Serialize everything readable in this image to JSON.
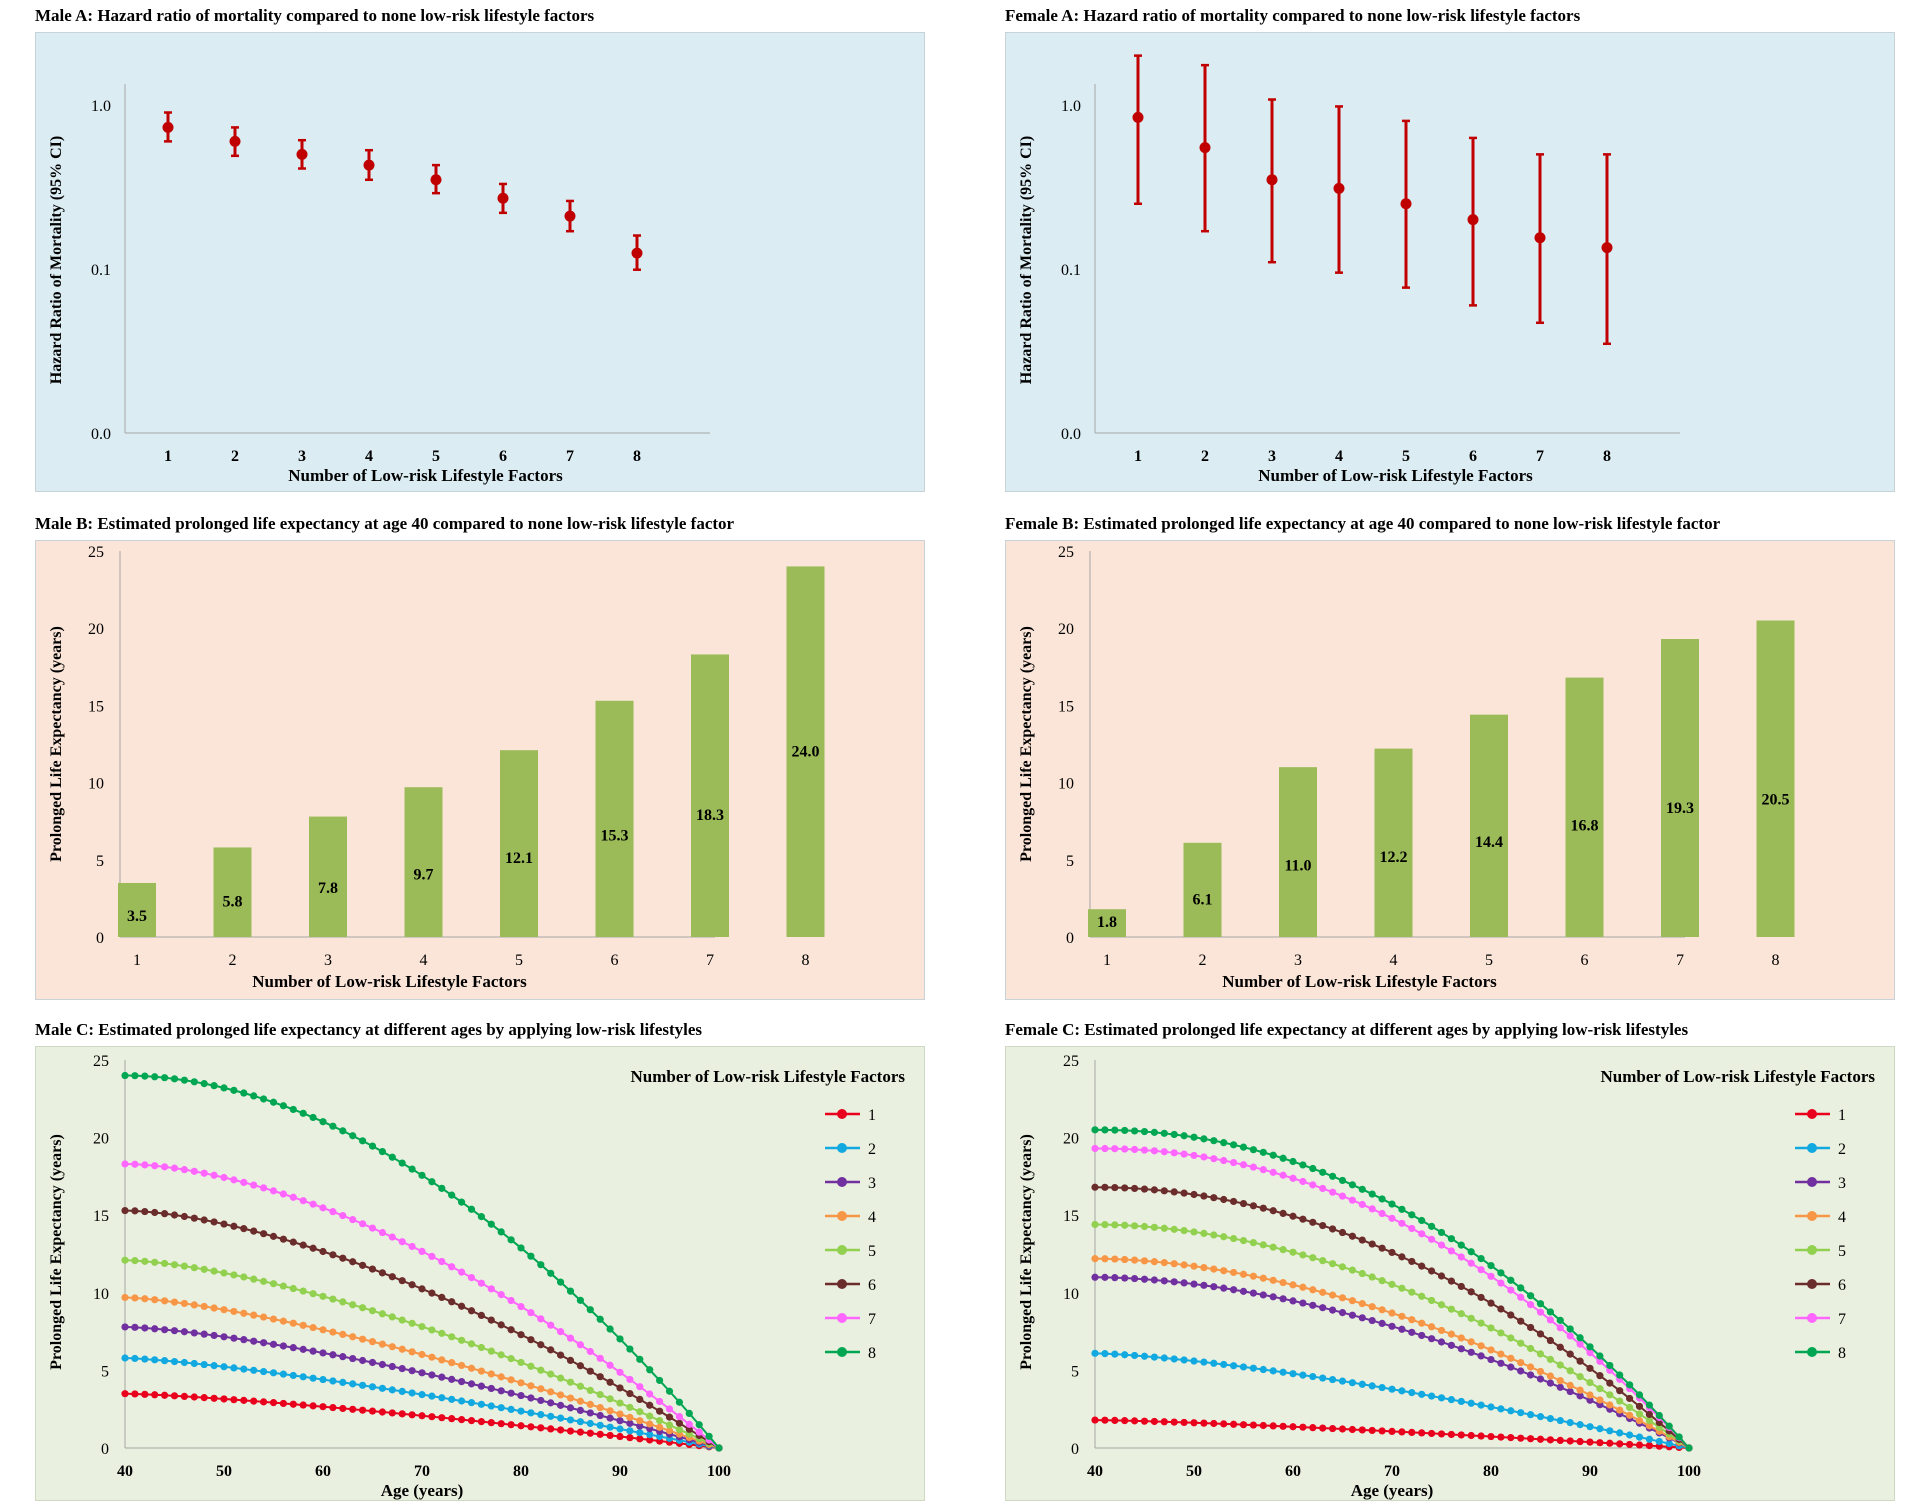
{
  "chart_data": [
    {
      "id": "male-a",
      "type": "scatter",
      "title": "Male A: Hazard ratio of mortality compared to none low-risk lifestyle factors",
      "xlabel": "Number of Low-risk Lifestyle Factors",
      "ylabel": "Hazard Ratio of Mortality (95% CI)",
      "y_scale": "log",
      "y_ticks": [
        "0.0",
        "0.1",
        "1.0"
      ],
      "x_ticks": [
        "1",
        "2",
        "3",
        "4",
        "5",
        "6",
        "7",
        "8"
      ],
      "x": [
        1,
        2,
        3,
        4,
        5,
        6,
        7,
        8
      ],
      "series": [
        {
          "values": [
            0.73,
            0.6,
            0.5,
            0.43,
            0.35,
            0.27,
            0.21,
            0.125
          ],
          "lower": [
            0.6,
            0.49,
            0.41,
            0.35,
            0.29,
            0.22,
            0.17,
            0.099
          ],
          "upper": [
            0.9,
            0.73,
            0.61,
            0.53,
            0.43,
            0.33,
            0.26,
            0.16
          ]
        }
      ],
      "colors": {
        "marker": "#c00000",
        "background": "#dbecf2"
      }
    },
    {
      "id": "female-a",
      "type": "scatter",
      "title": "Female A: Hazard ratio of mortality compared to none low-risk lifestyle factors",
      "xlabel": "Number of Low-risk Lifestyle Factors",
      "ylabel": "Hazard Ratio of Mortality (95% CI)",
      "y_scale": "log",
      "y_ticks": [
        "0.0",
        "0.1",
        "1.0"
      ],
      "x_ticks": [
        "1",
        "2",
        "3",
        "4",
        "5",
        "6",
        "7",
        "8"
      ],
      "x": [
        1,
        2,
        3,
        4,
        5,
        6,
        7,
        8
      ],
      "series": [
        {
          "values": [
            0.84,
            0.55,
            0.35,
            0.31,
            0.25,
            0.2,
            0.155,
            0.135
          ],
          "lower": [
            0.25,
            0.17,
            0.11,
            0.095,
            0.077,
            0.06,
            0.047,
            0.035
          ],
          "upper": [
            2.0,
            1.75,
            1.08,
            0.98,
            0.8,
            0.63,
            0.5,
            0.5
          ]
        }
      ],
      "colors": {
        "marker": "#c00000",
        "background": "#dbecf2"
      }
    },
    {
      "id": "male-b",
      "type": "bar",
      "title": "Male B: Estimated prolonged life expectancy at age 40 compared to none low-risk lifestyle factor",
      "xlabel": "Number of Low-risk Lifestyle Factors",
      "ylabel": "Prolonged Life Expectancy (years)",
      "ylim": [
        0,
        25
      ],
      "y_ticks": [
        "0",
        "5",
        "10",
        "15",
        "20",
        "25"
      ],
      "categories": [
        "1",
        "2",
        "3",
        "4",
        "5",
        "6",
        "7",
        "8"
      ],
      "values": [
        3.5,
        5.8,
        7.8,
        9.7,
        12.1,
        15.3,
        18.3,
        24.0
      ],
      "labels": [
        "3.5",
        "5.8",
        "7.8",
        "9.7",
        "12.1",
        "15.3",
        "18.3",
        "24.0"
      ],
      "colors": {
        "bar": "#9bbb59",
        "background": "#fbe5d8"
      }
    },
    {
      "id": "female-b",
      "type": "bar",
      "title": "Female B: Estimated prolonged life expectancy at age 40 compared to none low-risk lifestyle factor",
      "xlabel": "Number of Low-risk Lifestyle Factors",
      "ylabel": "Prolonged Life Expectancy (years)",
      "ylim": [
        0,
        25
      ],
      "y_ticks": [
        "0",
        "5",
        "10",
        "15",
        "20",
        "25"
      ],
      "categories": [
        "1",
        "2",
        "3",
        "4",
        "5",
        "6",
        "7",
        "8"
      ],
      "values": [
        1.8,
        6.1,
        11.0,
        12.2,
        14.4,
        16.8,
        19.3,
        20.5
      ],
      "labels": [
        "1.8",
        "6.1",
        "11.0",
        "12.2",
        "14.4",
        "16.8",
        "19.3",
        "20.5"
      ],
      "colors": {
        "bar": "#9bbb59",
        "background": "#fbe5d8"
      }
    },
    {
      "id": "male-c",
      "type": "line",
      "title": "Male C: Estimated prolonged life expectancy at different ages by applying low-risk lifestyles",
      "xlabel": "Age (years)",
      "ylabel": "Prolonged Life Expectancy (years)",
      "xlim": [
        40,
        100
      ],
      "ylim": [
        0,
        25
      ],
      "x_ticks": [
        "40",
        "50",
        "60",
        "70",
        "80",
        "90",
        "100"
      ],
      "y_ticks": [
        "0",
        "5",
        "10",
        "15",
        "20",
        "25"
      ],
      "legend_title": "Number of Low-risk Lifestyle Factors",
      "legend_position": "top-right",
      "x_start": 40,
      "x_end": 100,
      "x_step": 1,
      "series": [
        {
          "name": "1",
          "start": 3.5,
          "color": "#e8001c"
        },
        {
          "name": "2",
          "start": 5.8,
          "color": "#12a9e0"
        },
        {
          "name": "3",
          "start": 7.8,
          "color": "#7030a0"
        },
        {
          "name": "4",
          "start": 9.7,
          "color": "#f79646"
        },
        {
          "name": "5",
          "start": 12.1,
          "color": "#92d050"
        },
        {
          "name": "6",
          "start": 15.3,
          "color": "#6b2c2c"
        },
        {
          "name": "7",
          "start": 18.3,
          "color": "#ff66ff"
        },
        {
          "name": "8",
          "start": 24.0,
          "color": "#00a651"
        }
      ],
      "curve_exponents": [
        1.3,
        1.3,
        1.4,
        1.4,
        1.5,
        1.6,
        1.7,
        1.9
      ],
      "background": "#eaf0df"
    },
    {
      "id": "female-c",
      "type": "line",
      "title": "Female C: Estimated prolonged life expectancy at different ages by applying low-risk lifestyles",
      "xlabel": "Age (years)",
      "ylabel": "Prolonged Life Expectancy (years)",
      "xlim": [
        40,
        100
      ],
      "ylim": [
        0,
        25
      ],
      "x_ticks": [
        "40",
        "50",
        "60",
        "70",
        "80",
        "90",
        "100"
      ],
      "y_ticks": [
        "0",
        "5",
        "10",
        "15",
        "20",
        "25"
      ],
      "legend_title": "Number of Low-risk Lifestyle Factors",
      "legend_position": "top-right",
      "x_start": 40,
      "x_end": 100,
      "x_step": 1,
      "series": [
        {
          "name": "1",
          "start": 1.8,
          "color": "#e8001c"
        },
        {
          "name": "2",
          "start": 6.1,
          "color": "#12a9e0"
        },
        {
          "name": "3",
          "start": 11.0,
          "color": "#7030a0"
        },
        {
          "name": "4",
          "start": 12.2,
          "color": "#f79646"
        },
        {
          "name": "5",
          "start": 14.4,
          "color": "#92d050"
        },
        {
          "name": "6",
          "start": 16.8,
          "color": "#6b2c2c"
        },
        {
          "name": "7",
          "start": 19.3,
          "color": "#ff66ff"
        },
        {
          "name": "8",
          "start": 20.5,
          "color": "#00a651"
        }
      ],
      "curve_exponents": [
        1.3,
        1.4,
        1.8,
        1.8,
        1.9,
        2.0,
        2.1,
        2.1
      ],
      "background": "#eaf0df"
    }
  ]
}
